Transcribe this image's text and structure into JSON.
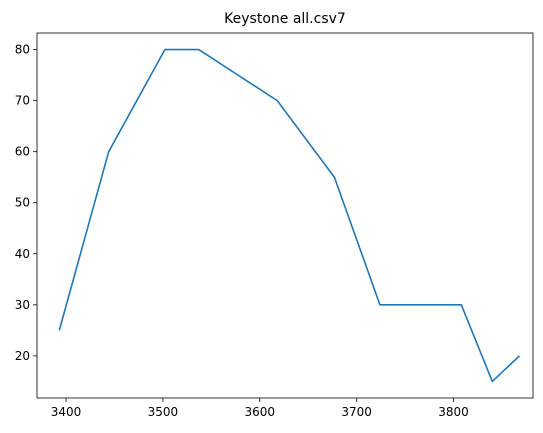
{
  "chart_data": {
    "type": "line",
    "title": "Keystone all.csv7",
    "xlabel": "",
    "ylabel": "",
    "xlim": [
      3370,
      3882
    ],
    "ylim": [
      11.75,
      83.25
    ],
    "xticks": [
      3400,
      3500,
      3600,
      3700,
      3800
    ],
    "yticks": [
      20,
      30,
      40,
      50,
      60,
      70,
      80
    ],
    "grid": false,
    "legend": "none",
    "series": [
      {
        "color": "#1f77b4",
        "x": [
          3393,
          3444,
          3502,
          3537,
          3618,
          3677,
          3724,
          3808,
          3840,
          3868
        ],
        "y": [
          25,
          60,
          80,
          80,
          70,
          55,
          30,
          30,
          15,
          20
        ]
      }
    ]
  }
}
